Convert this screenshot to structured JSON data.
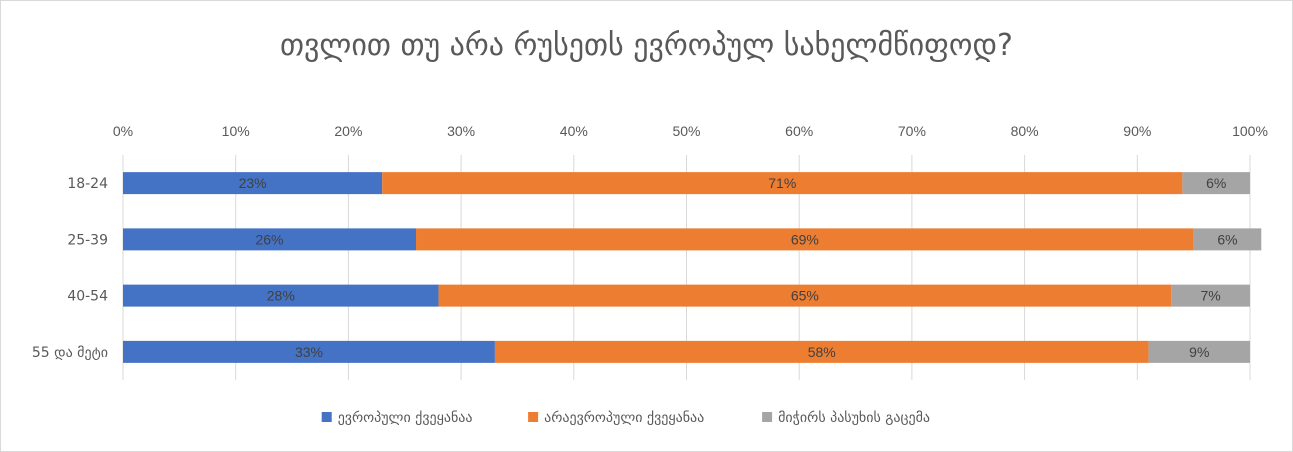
{
  "chart_data": {
    "type": "bar",
    "orientation": "horizontal",
    "stacked": "percent",
    "title": "თვლით თუ არა რუსეთს ევროპულ სახელმწიფოდ?",
    "categories": [
      "18-24",
      "25-39",
      "40-54",
      "55 და მეტი"
    ],
    "series": [
      {
        "name": "ევროპული ქვეყანაა",
        "color": "#4472C4",
        "values": [
          23,
          26,
          28,
          33
        ]
      },
      {
        "name": "არაევროპული ქვეყანაა",
        "color": "#ED7D31",
        "values": [
          71,
          69,
          65,
          58
        ]
      },
      {
        "name": "მიჭირს პასუხის გაცემა",
        "color": "#A5A5A5",
        "values": [
          6,
          6,
          7,
          9
        ]
      }
    ],
    "x_ticks": [
      "0%",
      "10%",
      "20%",
      "30%",
      "40%",
      "50%",
      "60%",
      "70%",
      "80%",
      "90%",
      "100%"
    ],
    "xlim": [
      0,
      100
    ],
    "grid": true,
    "legend_position": "bottom"
  }
}
